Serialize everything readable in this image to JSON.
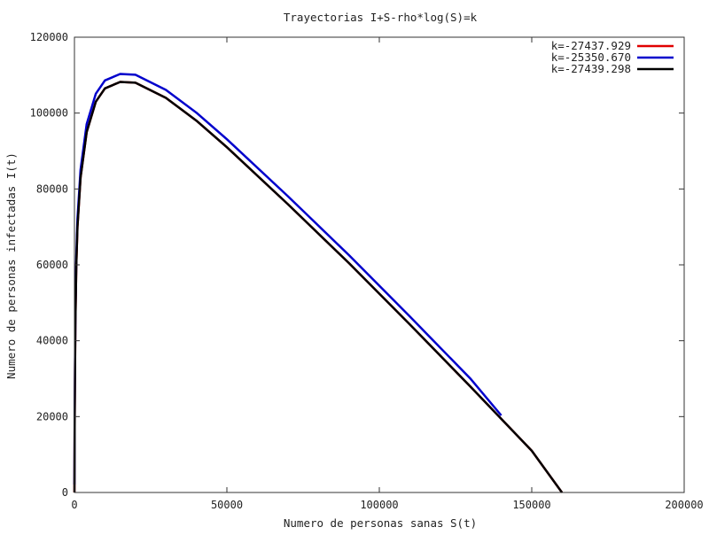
{
  "chart_data": {
    "type": "line",
    "title": "Trayectorias I+S-rho*log(S)=k",
    "xlabel": "Numero de personas sanas S(t)",
    "ylabel": "Numero de personas infectadas I(t)",
    "xlim": [
      0,
      200000
    ],
    "ylim": [
      0,
      120000
    ],
    "x_ticks": [
      "0",
      "50000",
      "100000",
      "150000",
      "200000"
    ],
    "y_ticks": [
      "0",
      "20000",
      "40000",
      "60000",
      "80000",
      "100000",
      "120000"
    ],
    "x_tick_values": [
      0,
      50000,
      100000,
      150000,
      200000
    ],
    "y_tick_values": [
      0,
      20000,
      40000,
      60000,
      80000,
      100000,
      120000
    ],
    "grid": false,
    "legend_position": "top-right",
    "series": [
      {
        "name": "k=-27437.929",
        "color": "#e00000",
        "points": [
          [
            1,
            20
          ],
          [
            100,
            20500
          ],
          [
            300,
            44000
          ],
          [
            600,
            60000
          ],
          [
            1000,
            70000
          ],
          [
            2000,
            83000
          ],
          [
            4000,
            95000
          ],
          [
            7000,
            103000
          ],
          [
            10000,
            106500
          ],
          [
            15000,
            108200
          ],
          [
            20000,
            108000
          ],
          [
            30000,
            104000
          ],
          [
            40000,
            98000
          ],
          [
            50000,
            91000
          ],
          [
            70000,
            76000
          ],
          [
            90000,
            60500
          ],
          [
            110000,
            44300
          ],
          [
            130000,
            27800
          ],
          [
            150000,
            11000
          ],
          [
            159900,
            0
          ]
        ]
      },
      {
        "name": "k=-25350.670",
        "color": "#0000cc",
        "points": [
          [
            1,
            2100
          ],
          [
            100,
            22600
          ],
          [
            300,
            46100
          ],
          [
            600,
            62100
          ],
          [
            1000,
            72100
          ],
          [
            2000,
            85100
          ],
          [
            4000,
            97100
          ],
          [
            7000,
            105100
          ],
          [
            10000,
            108600
          ],
          [
            15000,
            110300
          ],
          [
            20000,
            110100
          ],
          [
            30000,
            106100
          ],
          [
            40000,
            100100
          ],
          [
            50000,
            93100
          ],
          [
            70000,
            78100
          ],
          [
            90000,
            62600
          ],
          [
            110000,
            46400
          ],
          [
            130000,
            29900
          ],
          [
            140000,
            20300
          ]
        ]
      },
      {
        "name": "k=-27439.298",
        "color": "#000000",
        "points": [
          [
            1,
            20
          ],
          [
            100,
            20500
          ],
          [
            300,
            44000
          ],
          [
            600,
            60000
          ],
          [
            1000,
            70000
          ],
          [
            2000,
            83000
          ],
          [
            4000,
            95000
          ],
          [
            7000,
            103000
          ],
          [
            10000,
            106500
          ],
          [
            15000,
            108200
          ],
          [
            20000,
            108000
          ],
          [
            30000,
            104000
          ],
          [
            40000,
            98000
          ],
          [
            50000,
            91000
          ],
          [
            70000,
            76000
          ],
          [
            90000,
            60500
          ],
          [
            110000,
            44300
          ],
          [
            130000,
            27800
          ],
          [
            150000,
            11000
          ],
          [
            159900,
            0
          ]
        ]
      }
    ]
  }
}
